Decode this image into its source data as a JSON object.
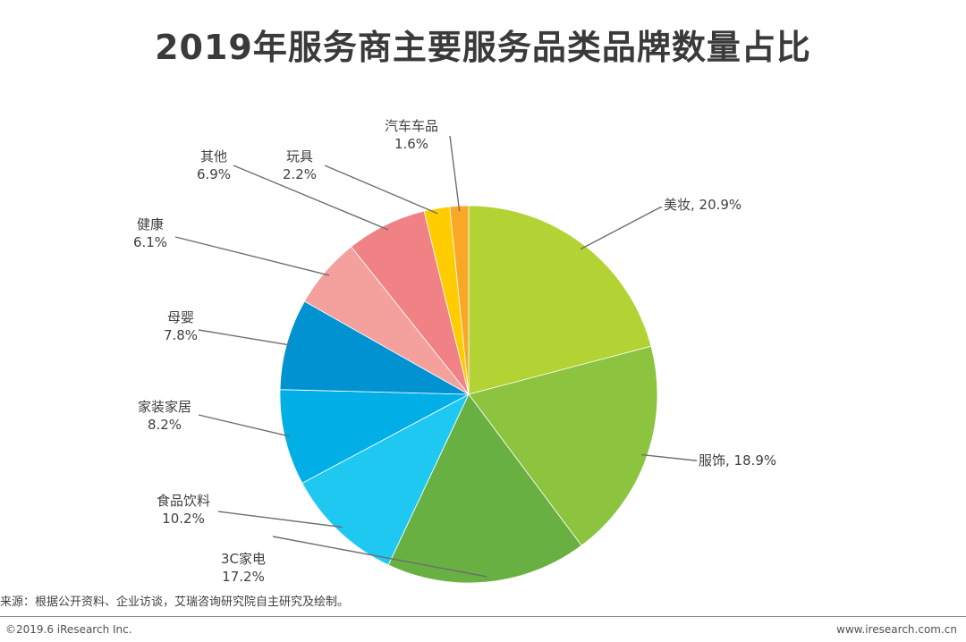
{
  "header": {
    "title": "2019年服务商主要服务品类品牌数量占比"
  },
  "chart_data": {
    "type": "pie",
    "title": "2019年服务商主要服务品类品牌数量占比",
    "unit": "%",
    "start_angle": "12 o'clock",
    "direction": "clockwise",
    "slices": [
      {
        "label": "美妆",
        "value": 20.9,
        "text": "20.9%",
        "color": "#b3d334"
      },
      {
        "label": "服饰",
        "value": 18.9,
        "text": "18.9%",
        "color": "#8cc33f"
      },
      {
        "label": "3C家电",
        "value": 17.2,
        "text": "17.2%",
        "color": "#69b043"
      },
      {
        "label": "食品饮料",
        "value": 10.2,
        "text": "10.2%",
        "color": "#1fc8f1"
      },
      {
        "label": "家装家居",
        "value": 8.2,
        "text": "8.2%",
        "color": "#02aee6"
      },
      {
        "label": "母婴",
        "value": 7.8,
        "text": "7.8%",
        "color": "#0192d1"
      },
      {
        "label": "健康",
        "value": 6.1,
        "text": "6.1%",
        "color": "#f4a09d"
      },
      {
        "label": "其他",
        "value": 6.9,
        "text": "6.9%",
        "color": "#f08286"
      },
      {
        "label": "玩具",
        "value": 2.2,
        "text": "2.2%",
        "color": "#ffcc00"
      },
      {
        "label": "汽车车品",
        "value": 1.6,
        "text": "1.6%",
        "color": "#f9a825"
      }
    ]
  },
  "footer": {
    "source": "来源：根据公开资料、企业访谈，艾瑞咨询研究院自主研究及绘制。",
    "copyright": "©2019.6 iResearch Inc.",
    "website": "www.iresearch.com.cn"
  }
}
